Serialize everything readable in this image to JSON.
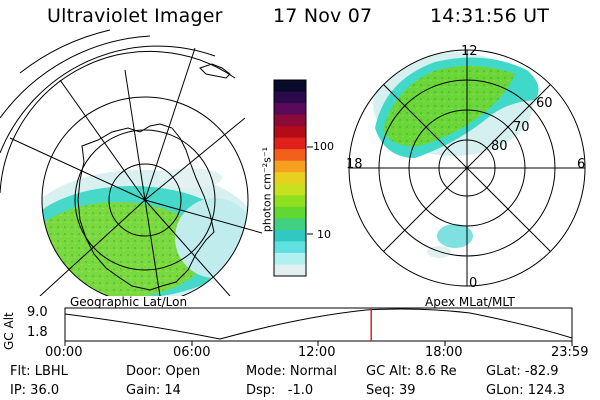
{
  "header": {
    "instrument": "Ultraviolet Imager",
    "date": "17 Nov 07",
    "time": "14:31:56 UT"
  },
  "left_map": {
    "title": "Geographic Lat/Lon"
  },
  "right_map": {
    "title": "Apex MLat/MLT",
    "mlt_labels": {
      "top": "12",
      "left": "18",
      "right": "6",
      "bottom": "0"
    },
    "mlat_labels": [
      "60",
      "70",
      "80"
    ]
  },
  "colorbar": {
    "unit_label": "photon cm⁻²s⁻¹",
    "tick_100": "100",
    "tick_10": "10",
    "colors": [
      "#0a0a2a",
      "#2a0a4a",
      "#5a0a5a",
      "#8a0a3a",
      "#b40a1a",
      "#e0201a",
      "#f2601a",
      "#f5a020",
      "#e8d020",
      "#c8e020",
      "#90e020",
      "#60d830",
      "#40d080",
      "#30c8c0",
      "#60e0e0",
      "#b0f0f0",
      "#e0f0f0"
    ]
  },
  "altitude_plot": {
    "ylabel": "GC Alt",
    "ymax_label": "9.0",
    "ymin_label": "1.8",
    "x_ticks": [
      "00:00",
      "06:00",
      "12:00",
      "18:00",
      "23:59"
    ],
    "current_time_fraction": 0.604
  },
  "status": {
    "filter": "Flt: LBHL",
    "ip": "IP: 36.0",
    "door": "Door: Open",
    "gain": "Gain: 14",
    "mode": "Mode: Normal",
    "dsp": "Dsp:   -1.0",
    "gc_alt": "GC Alt: 8.6 Re",
    "seq": "Seq: 39",
    "glat": "GLat: -82.9",
    "glon": "GLon: 124.3"
  },
  "colors": {
    "aurora_green": "#6ad63a",
    "aurora_cyan": "#40d8c8",
    "aurora_light": "#c8f0f0",
    "marker_red": "#e02020"
  }
}
